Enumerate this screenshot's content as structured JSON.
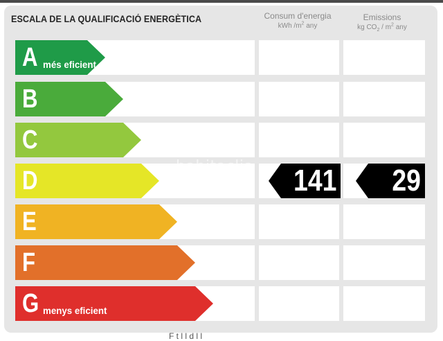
{
  "title": "ESCALA DE LA QUALIFICACIÓ ENERGÈTICA",
  "columns": {
    "consum": {
      "label": "Consum d'energia",
      "unit_prefix": "kWh /m",
      "unit_sup": "2",
      "unit_suffix": " any"
    },
    "emissions": {
      "label": "Emissions",
      "unit_prefix": "kg CO",
      "unit_sub": "2",
      "unit_mid": " / m",
      "unit_sup": "2",
      "unit_suffix": " any"
    }
  },
  "ratings": [
    {
      "letter": "A",
      "sublabel": "més eficient",
      "color": "#1f9b48"
    },
    {
      "letter": "B",
      "sublabel": "",
      "color": "#4aab3b"
    },
    {
      "letter": "C",
      "sublabel": "",
      "color": "#93c83e"
    },
    {
      "letter": "D",
      "sublabel": "",
      "color": "#e5e627"
    },
    {
      "letter": "E",
      "sublabel": "",
      "color": "#f0b323"
    },
    {
      "letter": "F",
      "sublabel": "",
      "color": "#e2702a"
    },
    {
      "letter": "G",
      "sublabel": "menys eficient",
      "color": "#df2f2c"
    }
  ],
  "current": {
    "rating": "D",
    "consum_value": "141",
    "emissions_value": "29",
    "tag_color": "#000000"
  },
  "watermark": "habitaclia",
  "footer_partial": "F    t       l l         d     l   l"
}
